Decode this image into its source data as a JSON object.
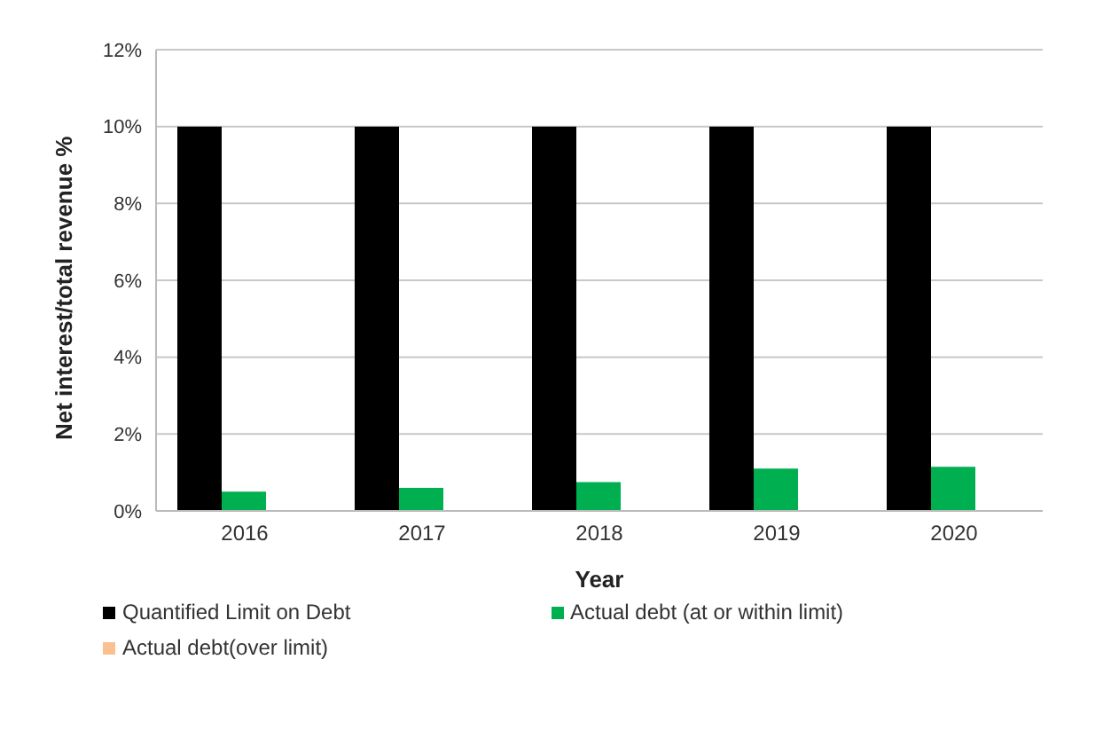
{
  "chart_data": {
    "type": "bar",
    "xlabel": "Year",
    "ylabel": "Net interest/total revenue %",
    "categories": [
      "2016",
      "2017",
      "2018",
      "2019",
      "2020"
    ],
    "series": [
      {
        "name": "Quantified Limit on Debt",
        "color": "#000000",
        "values": [
          10,
          10,
          10,
          10,
          10
        ]
      },
      {
        "name": "Actual debt (at or within limit)",
        "color": "#00b050",
        "values": [
          0.5,
          0.6,
          0.75,
          1.1,
          1.15
        ]
      },
      {
        "name": "Actual debt(over limit)",
        "color": "#fac090",
        "values": [
          null,
          null,
          null,
          null,
          null
        ]
      }
    ],
    "ylim": [
      0,
      12
    ],
    "yticks": [
      {
        "value": 0,
        "label": "0%"
      },
      {
        "value": 2,
        "label": "2%"
      },
      {
        "value": 4,
        "label": "4%"
      },
      {
        "value": 6,
        "label": "6%"
      },
      {
        "value": 8,
        "label": "8%"
      },
      {
        "value": 10,
        "label": "10%"
      },
      {
        "value": 12,
        "label": "12%"
      }
    ],
    "grid": "y",
    "legend": "bottom"
  }
}
